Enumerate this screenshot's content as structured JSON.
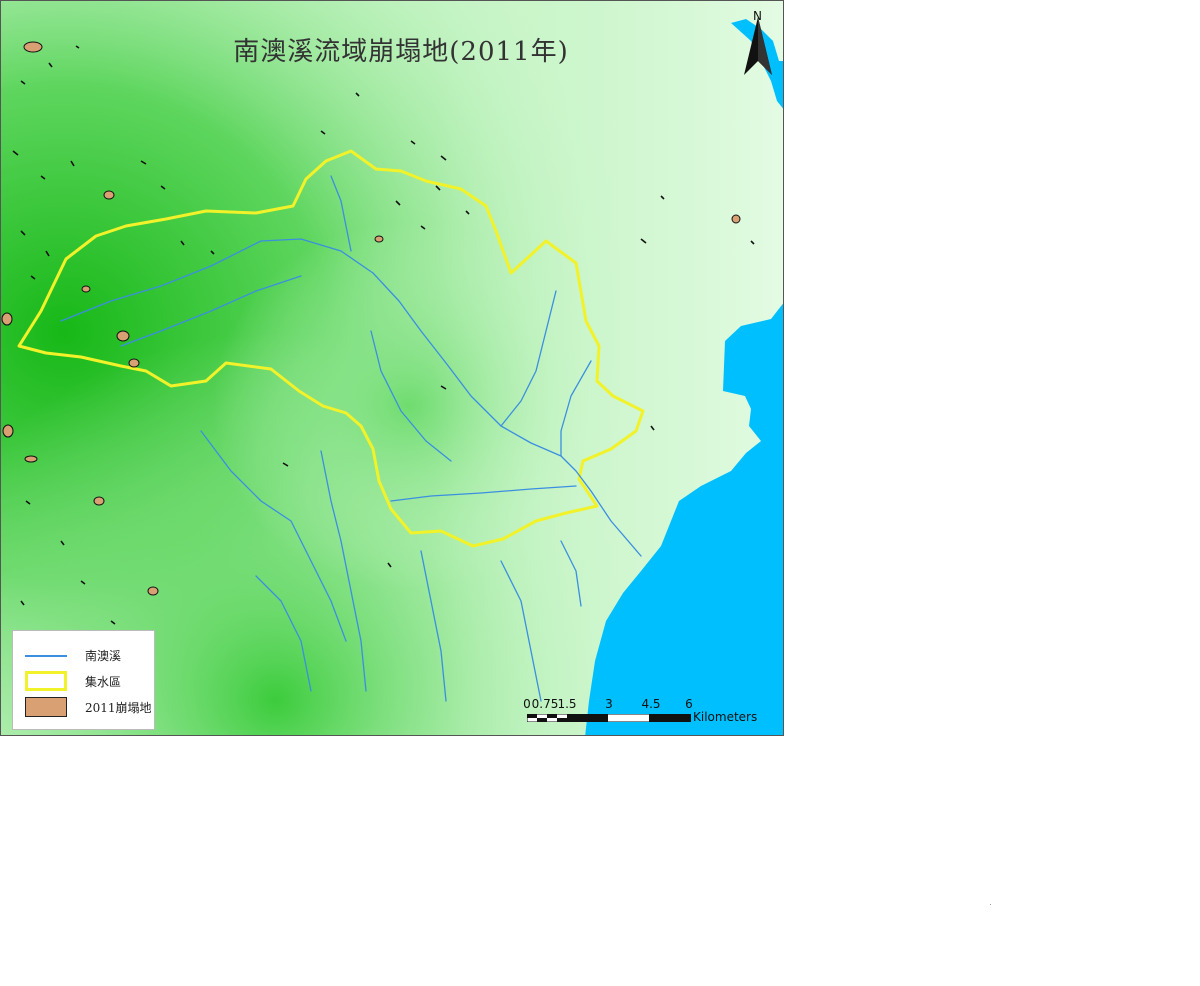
{
  "map": {
    "title": "南澳溪流域崩塌地(2011年)",
    "north_letter": "N"
  },
  "legend": {
    "items": [
      {
        "symbol": "river-line",
        "label": "南澳溪",
        "color": "#3b8fe0"
      },
      {
        "symbol": "basin-outline",
        "label": "集水區",
        "color": "#f2f22a"
      },
      {
        "symbol": "landslide-fill",
        "label": "2011崩塌地",
        "color": "#d9a074"
      }
    ]
  },
  "scale_bar": {
    "ticks": [
      "0",
      "0.75",
      "1.5",
      "3",
      "4.5",
      "6"
    ],
    "unit": "Kilometers"
  },
  "colors": {
    "terrain_high": "#1fbf1f",
    "terrain_low": "#d6f8d6",
    "sea": "#00bfff",
    "river": "#3b8fe0",
    "basin": "#f2f22a",
    "landslide": "#d9a074"
  }
}
